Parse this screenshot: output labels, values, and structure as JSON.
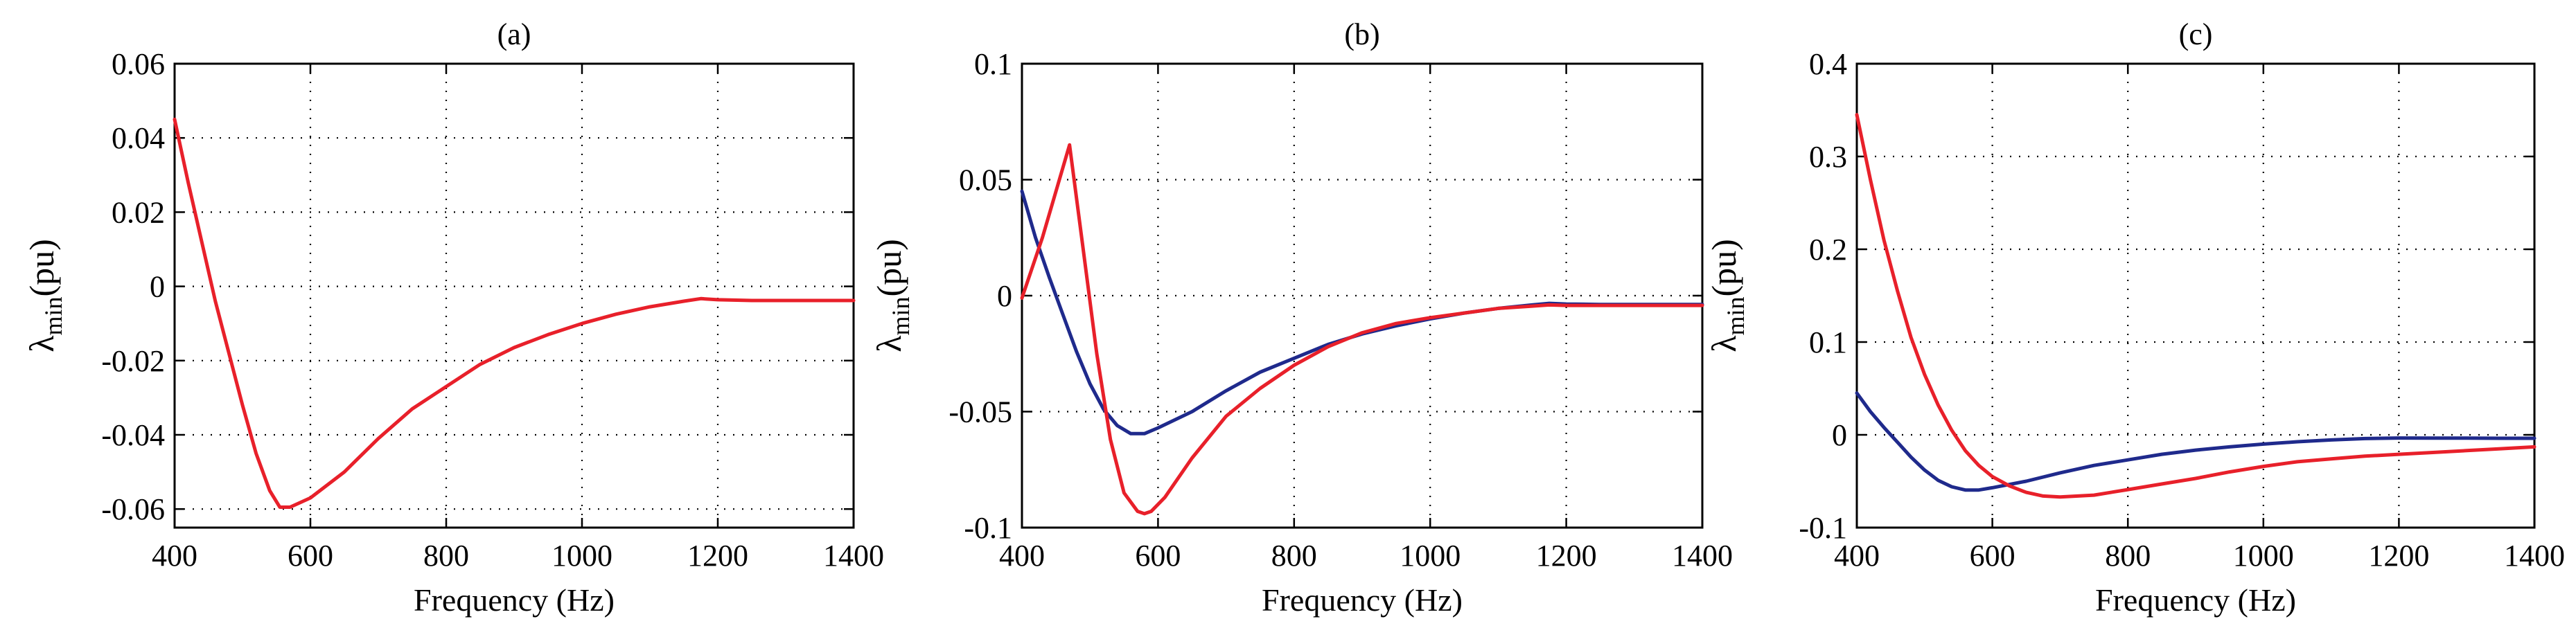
{
  "colors": {
    "red": "#e8202a",
    "blue": "#1f2a8c"
  },
  "chart_data": [
    {
      "type": "line",
      "title": "(a)",
      "xlabel": "Frequency (Hz)",
      "ylabel": {
        "symbol": "λ",
        "sub": "min",
        "unit": "(pu)"
      },
      "xlim": [
        400,
        1400
      ],
      "ylim": [
        -0.065,
        0.06
      ],
      "xticks": [
        400,
        600,
        800,
        1000,
        1200,
        1400
      ],
      "xtick_labels": [
        "400",
        "600",
        "800",
        "1000",
        "1200",
        "1400"
      ],
      "yticks": [
        -0.06,
        -0.04,
        -0.02,
        0,
        0.02,
        0.04,
        0.06
      ],
      "ytick_labels": [
        "-0.06",
        "-0.04",
        "-0.02",
        "0",
        "0.02",
        "0.04",
        "0.06"
      ],
      "grid": true,
      "series": [
        {
          "name": "red",
          "color": "#e8202a",
          "x": [
            400,
            420,
            440,
            460,
            480,
            500,
            520,
            540,
            555,
            570,
            600,
            650,
            700,
            750,
            800,
            850,
            900,
            950,
            1000,
            1050,
            1100,
            1150,
            1175,
            1200,
            1250,
            1300,
            1350,
            1400
          ],
          "y": [
            0.045,
            0.028,
            0.012,
            -0.004,
            -0.018,
            -0.032,
            -0.045,
            -0.055,
            -0.0595,
            -0.0595,
            -0.057,
            -0.05,
            -0.041,
            -0.033,
            -0.027,
            -0.021,
            -0.0165,
            -0.013,
            -0.01,
            -0.0075,
            -0.0055,
            -0.004,
            -0.0033,
            -0.0036,
            -0.0038,
            -0.0038,
            -0.0038,
            -0.0038
          ]
        }
      ]
    },
    {
      "type": "line",
      "title": "(b)",
      "xlabel": "Frequency (Hz)",
      "ylabel": {
        "symbol": "λ",
        "sub": "min",
        "unit": "(pu)"
      },
      "xlim": [
        400,
        1400
      ],
      "ylim": [
        -0.1,
        0.1
      ],
      "xticks": [
        400,
        600,
        800,
        1000,
        1200,
        1400
      ],
      "xtick_labels": [
        "400",
        "600",
        "800",
        "1000",
        "1200",
        "1400"
      ],
      "yticks": [
        -0.1,
        -0.05,
        0,
        0.05,
        0.1
      ],
      "ytick_labels": [
        "-0.1",
        "-0.05",
        "0",
        "0.05",
        "0.1"
      ],
      "grid": true,
      "series": [
        {
          "name": "blue",
          "color": "#1f2a8c",
          "x": [
            400,
            420,
            440,
            460,
            480,
            500,
            520,
            540,
            560,
            580,
            600,
            650,
            700,
            750,
            800,
            850,
            900,
            950,
            1000,
            1050,
            1100,
            1150,
            1175,
            1200,
            1250,
            1300,
            1350,
            1400
          ],
          "y": [
            0.045,
            0.025,
            0.008,
            -0.008,
            -0.024,
            -0.038,
            -0.049,
            -0.056,
            -0.0595,
            -0.0595,
            -0.057,
            -0.05,
            -0.041,
            -0.033,
            -0.027,
            -0.021,
            -0.0165,
            -0.013,
            -0.01,
            -0.0075,
            -0.0055,
            -0.004,
            -0.0033,
            -0.0036,
            -0.0038,
            -0.0038,
            -0.0038,
            -0.0038
          ]
        },
        {
          "name": "red",
          "color": "#e8202a",
          "x": [
            400,
            430,
            460,
            470,
            490,
            510,
            530,
            550,
            570,
            580,
            590,
            610,
            650,
            700,
            750,
            800,
            850,
            900,
            950,
            1000,
            1050,
            1100,
            1150,
            1175,
            1200,
            1250,
            1300,
            1400
          ],
          "y": [
            -0.001,
            0.025,
            0.055,
            0.065,
            0.02,
            -0.025,
            -0.062,
            -0.085,
            -0.093,
            -0.094,
            -0.093,
            -0.087,
            -0.07,
            -0.052,
            -0.04,
            -0.03,
            -0.022,
            -0.016,
            -0.012,
            -0.0095,
            -0.0075,
            -0.0055,
            -0.0045,
            -0.004,
            -0.0042,
            -0.0042,
            -0.0042,
            -0.0042
          ]
        }
      ]
    },
    {
      "type": "line",
      "title": "(c)",
      "xlabel": "Frequency (Hz)",
      "ylabel": {
        "symbol": "λ",
        "sub": "min",
        "unit": "(pu)"
      },
      "xlim": [
        400,
        1400
      ],
      "ylim": [
        -0.1,
        0.4
      ],
      "xticks": [
        400,
        600,
        800,
        1000,
        1200,
        1400
      ],
      "xtick_labels": [
        "400",
        "600",
        "800",
        "1000",
        "1200",
        "1400"
      ],
      "yticks": [
        -0.1,
        0,
        0.1,
        0.2,
        0.3,
        0.4
      ],
      "ytick_labels": [
        "-0.1",
        "0",
        "0.1",
        "0.2",
        "0.3",
        "0.4"
      ],
      "grid": true,
      "series": [
        {
          "name": "blue",
          "color": "#1f2a8c",
          "x": [
            400,
            420,
            440,
            460,
            480,
            500,
            520,
            540,
            560,
            580,
            600,
            650,
            700,
            750,
            800,
            850,
            900,
            950,
            1000,
            1050,
            1100,
            1150,
            1200,
            1250,
            1300,
            1350,
            1400
          ],
          "y": [
            0.045,
            0.025,
            0.008,
            -0.008,
            -0.024,
            -0.038,
            -0.049,
            -0.056,
            -0.0595,
            -0.0595,
            -0.057,
            -0.05,
            -0.041,
            -0.033,
            -0.027,
            -0.021,
            -0.0165,
            -0.013,
            -0.01,
            -0.0075,
            -0.0055,
            -0.004,
            -0.0034,
            -0.0036,
            -0.0036,
            -0.0037,
            -0.0037
          ]
        },
        {
          "name": "red",
          "color": "#e8202a",
          "x": [
            400,
            420,
            440,
            460,
            480,
            500,
            520,
            540,
            560,
            580,
            600,
            625,
            650,
            675,
            700,
            750,
            800,
            850,
            900,
            950,
            1000,
            1050,
            1100,
            1150,
            1200,
            1250,
            1300,
            1350,
            1400
          ],
          "y": [
            0.345,
            0.275,
            0.21,
            0.155,
            0.105,
            0.065,
            0.032,
            0.005,
            -0.017,
            -0.033,
            -0.045,
            -0.055,
            -0.062,
            -0.066,
            -0.067,
            -0.065,
            -0.059,
            -0.053,
            -0.047,
            -0.04,
            -0.034,
            -0.029,
            -0.026,
            -0.023,
            -0.021,
            -0.019,
            -0.017,
            -0.015,
            -0.013
          ]
        }
      ]
    }
  ]
}
